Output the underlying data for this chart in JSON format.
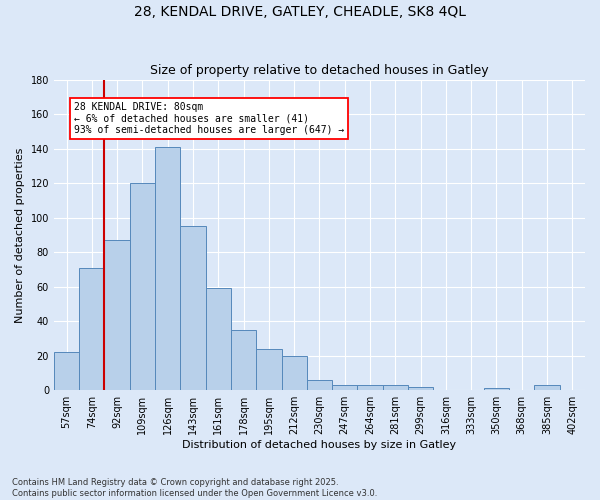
{
  "title_line1": "28, KENDAL DRIVE, GATLEY, CHEADLE, SK8 4QL",
  "title_line2": "Size of property relative to detached houses in Gatley",
  "xlabel": "Distribution of detached houses by size in Gatley",
  "ylabel": "Number of detached properties",
  "footer_line1": "Contains HM Land Registry data © Crown copyright and database right 2025.",
  "footer_line2": "Contains public sector information licensed under the Open Government Licence v3.0.",
  "categories": [
    "57sqm",
    "74sqm",
    "92sqm",
    "109sqm",
    "126sqm",
    "143sqm",
    "161sqm",
    "178sqm",
    "195sqm",
    "212sqm",
    "230sqm",
    "247sqm",
    "264sqm",
    "281sqm",
    "299sqm",
    "316sqm",
    "333sqm",
    "350sqm",
    "368sqm",
    "385sqm",
    "402sqm"
  ],
  "values": [
    22,
    71,
    87,
    120,
    141,
    95,
    59,
    35,
    24,
    20,
    6,
    3,
    3,
    3,
    2,
    0,
    0,
    1,
    0,
    3,
    0
  ],
  "bar_color": "#b8d0ea",
  "bar_edge_color": "#5588bb",
  "background_color": "#dce8f8",
  "grid_color": "#ffffff",
  "fig_background_color": "#dce8f8",
  "ylim": [
    0,
    180
  ],
  "yticks": [
    0,
    20,
    40,
    60,
    80,
    100,
    120,
    140,
    160,
    180
  ],
  "red_line_index": 1.5,
  "annotation_text": "28 KENDAL DRIVE: 80sqm\n← 6% of detached houses are smaller (41)\n93% of semi-detached houses are larger (647) →",
  "property_line_color": "#cc0000",
  "annotation_fontsize": 7,
  "title1_fontsize": 10,
  "title2_fontsize": 9,
  "ylabel_fontsize": 8,
  "xlabel_fontsize": 8,
  "tick_fontsize": 7,
  "footer_fontsize": 6
}
